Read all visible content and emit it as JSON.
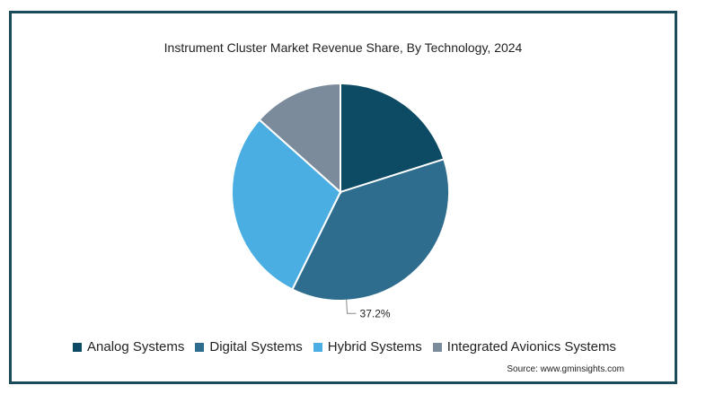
{
  "chart_data": {
    "type": "pie",
    "title": "Instrument Cluster Market Revenue Share, By Technology, 2024",
    "categories": [
      "Analog Systems",
      "Digital Systems",
      "Hybrid Systems",
      "Integrated Avionics Systems"
    ],
    "values": [
      20.1,
      37.2,
      29.3,
      13.4
    ],
    "colors": [
      "#0d4a63",
      "#2e6d8e",
      "#4aaee3",
      "#7c8b9c"
    ],
    "data_labels": [
      "",
      "37.2%",
      "",
      ""
    ],
    "legend_position": "bottom",
    "start_angle_deg": 0,
    "direction": "clockwise"
  },
  "source": "Source: www.gminsights.com"
}
